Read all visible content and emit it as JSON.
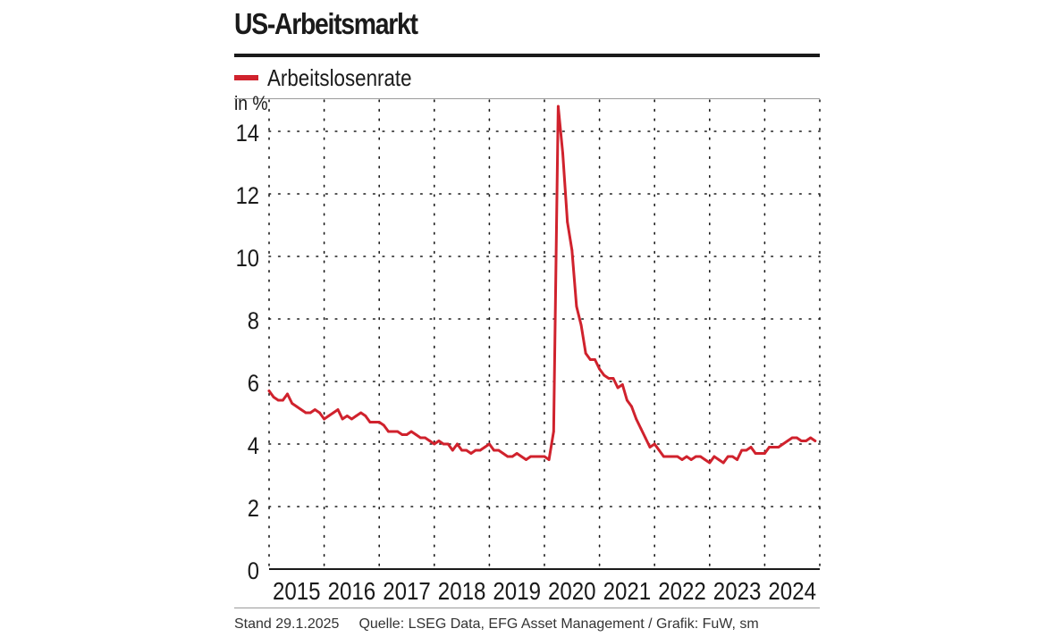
{
  "header": {
    "title": "US-Arbeitsmarkt",
    "legend_label": "Arbeitslosenrate"
  },
  "footer": {
    "date": "Stand 29.1.2025",
    "source": "Quelle: LSEG Data, EFG Asset Management / Grafik: FuW, sm"
  },
  "colors": {
    "series": "#d0222d",
    "text": "#1a1a1a",
    "grid": "#1a1a1a"
  },
  "chart_data": {
    "type": "line",
    "title": "US-Arbeitsmarkt",
    "ylabel": "in %",
    "xlabel": "",
    "ylim": [
      0,
      15
    ],
    "xlim": [
      2015.0,
      2025.0
    ],
    "yticks": [
      0,
      2,
      4,
      6,
      8,
      10,
      12,
      14
    ],
    "xtick_labels": [
      "2015",
      "2016",
      "2017",
      "2018",
      "2019",
      "2020",
      "2021",
      "2022",
      "2023",
      "2024"
    ],
    "grid": true,
    "legend": "top-left",
    "series": [
      {
        "name": "Arbeitslosenrate",
        "start": 2015.0,
        "step": 0.08333,
        "values": [
          5.7,
          5.5,
          5.4,
          5.4,
          5.6,
          5.3,
          5.2,
          5.1,
          5.0,
          5.0,
          5.1,
          5.0,
          4.8,
          4.9,
          5.0,
          5.1,
          4.8,
          4.9,
          4.8,
          4.9,
          5.0,
          4.9,
          4.7,
          4.7,
          4.7,
          4.6,
          4.4,
          4.4,
          4.4,
          4.3,
          4.3,
          4.4,
          4.3,
          4.2,
          4.2,
          4.1,
          4.0,
          4.1,
          4.0,
          4.0,
          3.8,
          4.0,
          3.8,
          3.8,
          3.7,
          3.8,
          3.8,
          3.9,
          4.0,
          3.8,
          3.8,
          3.7,
          3.6,
          3.6,
          3.7,
          3.6,
          3.5,
          3.6,
          3.6,
          3.6,
          3.6,
          3.5,
          4.4,
          14.8,
          13.3,
          11.1,
          10.2,
          8.4,
          7.8,
          6.9,
          6.7,
          6.7,
          6.4,
          6.2,
          6.1,
          6.1,
          5.8,
          5.9,
          5.4,
          5.2,
          4.8,
          4.5,
          4.2,
          3.9,
          4.0,
          3.8,
          3.6,
          3.6,
          3.6,
          3.6,
          3.5,
          3.6,
          3.5,
          3.6,
          3.6,
          3.5,
          3.4,
          3.6,
          3.5,
          3.4,
          3.6,
          3.6,
          3.5,
          3.8,
          3.8,
          3.9,
          3.7,
          3.7,
          3.7,
          3.9,
          3.9,
          3.9,
          4.0,
          4.1,
          4.2,
          4.2,
          4.1,
          4.1,
          4.2,
          4.1
        ]
      }
    ]
  }
}
